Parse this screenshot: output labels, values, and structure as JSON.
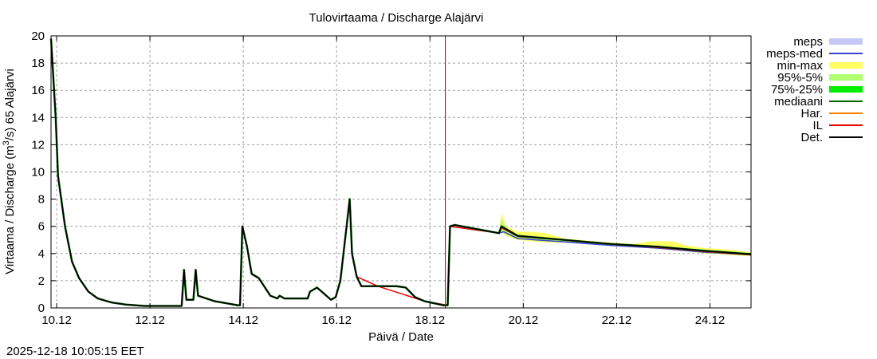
{
  "chart_data": {
    "type": "line",
    "title": "Tulovirtaama / Discharge  Alajärvi",
    "xlabel": "Päivä / Date",
    "ylabel": "Virtaama / Discharge (m³/s)  65 Alajärvi",
    "ylabel_parts": {
      "main": "Virtaama / Discharge (m",
      "sup": "3",
      "tail": "/s)  65 Alajärvi"
    },
    "ylim": [
      0,
      20
    ],
    "xlim": [
      "10.12",
      "25.12"
    ],
    "x_ticks": [
      "10.12",
      "12.12",
      "14.12",
      "16.12",
      "18.12",
      "20.12",
      "22.12",
      "24.12"
    ],
    "y_ticks": [
      0,
      2,
      4,
      6,
      8,
      10,
      12,
      14,
      16,
      18,
      20
    ],
    "grid": true,
    "forecast_start_marker": {
      "x_day": 18.45,
      "color": "#a00000"
    },
    "legend_position": "right-outside",
    "legend": [
      {
        "label": "meps",
        "color": "#c8c8f8",
        "style": "band"
      },
      {
        "label": "meps-med",
        "color": "#4040d0",
        "style": "line"
      },
      {
        "label": "min-max",
        "color": "#ffff60",
        "style": "band"
      },
      {
        "label": "95%-5%",
        "color": "#b0ff70",
        "style": "band"
      },
      {
        "label": "75%-25%",
        "color": "#00ee00",
        "style": "band"
      },
      {
        "label": "mediaani",
        "color": "#006400",
        "style": "line"
      },
      {
        "label": "Har.",
        "color": "#ff8000",
        "style": "line"
      },
      {
        "label": "IL",
        "color": "#ee0000",
        "style": "line"
      },
      {
        "label": "Det.",
        "color": "#000000",
        "style": "line"
      }
    ],
    "series": [
      {
        "name": "Det.",
        "x_day": [
          10.0,
          10.1,
          10.15,
          10.3,
          10.45,
          10.6,
          10.8,
          11.0,
          11.3,
          11.6,
          12.0,
          12.8,
          12.85,
          12.9,
          13.05,
          13.1,
          13.15,
          13.5,
          14.0,
          14.05,
          14.1,
          14.2,
          14.3,
          14.45,
          14.7,
          14.85,
          14.9,
          15.0,
          15.5,
          15.55,
          15.7,
          16.0,
          16.1,
          16.2,
          16.4,
          16.45,
          16.55,
          16.65,
          17.4,
          17.6,
          17.8,
          18.0,
          18.4,
          18.5,
          18.55,
          18.65,
          19.6,
          19.65,
          20.0,
          21.0,
          22.0,
          23.0,
          24.0,
          25.0
        ],
        "values": [
          19.8,
          14.0,
          9.7,
          6.0,
          3.4,
          2.2,
          1.2,
          0.7,
          0.4,
          0.25,
          0.15,
          0.15,
          2.8,
          0.6,
          0.6,
          2.8,
          0.9,
          0.5,
          0.2,
          0.2,
          6.0,
          4.5,
          2.5,
          2.2,
          0.9,
          0.7,
          0.9,
          0.7,
          0.7,
          1.2,
          1.5,
          0.6,
          0.8,
          2.0,
          8.0,
          4.0,
          2.3,
          1.6,
          1.6,
          1.5,
          0.8,
          0.5,
          0.2,
          0.2,
          6.0,
          6.1,
          5.5,
          6.0,
          5.3,
          5.0,
          4.7,
          4.5,
          4.2,
          3.95
        ]
      },
      {
        "name": "min-max",
        "x_day": [
          19.6,
          19.65,
          19.75,
          20.0,
          20.3,
          20.6,
          21.0,
          22.0,
          22.5,
          22.8,
          23.3,
          23.6,
          24.0,
          24.5,
          25.0
        ],
        "upper": [
          5.5,
          7.0,
          6.0,
          5.6,
          5.6,
          5.5,
          5.1,
          4.8,
          4.7,
          4.9,
          4.9,
          4.6,
          4.4,
          4.3,
          4.1
        ],
        "lower": [
          5.4,
          5.6,
          5.3,
          5.0,
          4.9,
          4.8,
          4.8,
          4.6,
          4.5,
          4.4,
          4.3,
          4.2,
          4.0,
          3.9,
          3.8
        ]
      },
      {
        "name": "95%-5%",
        "x_day": [
          19.6,
          19.65,
          19.75,
          20.0,
          20.5,
          21.0,
          22.0,
          23.0,
          24.0,
          25.0
        ],
        "upper": [
          5.5,
          6.6,
          5.8,
          5.4,
          5.2,
          5.0,
          4.75,
          4.55,
          4.3,
          4.05
        ],
        "lower": [
          5.4,
          5.6,
          5.4,
          5.05,
          4.9,
          4.85,
          4.6,
          4.35,
          4.05,
          3.85
        ]
      },
      {
        "name": "IL",
        "x_day": [
          16.45,
          16.55,
          17.0,
          18.0,
          18.5,
          18.55,
          19.6,
          19.65,
          20.0,
          21.0,
          22.0,
          23.0,
          24.0,
          25.0
        ],
        "values": [
          4.0,
          2.3,
          1.6,
          0.5,
          0.2,
          6.0,
          5.5,
          5.9,
          5.25,
          5.0,
          4.7,
          4.45,
          4.15,
          3.9
        ]
      },
      {
        "name": "meps-med",
        "x_day": [
          19.6,
          19.7,
          20.0,
          21.0,
          22.0,
          23.0,
          24.0,
          25.0
        ],
        "values": [
          5.5,
          5.6,
          5.1,
          4.85,
          4.6,
          4.4,
          4.1,
          3.9
        ]
      }
    ]
  },
  "footer": {
    "timestamp": "2025-12-18 10:05:15 EET"
  }
}
